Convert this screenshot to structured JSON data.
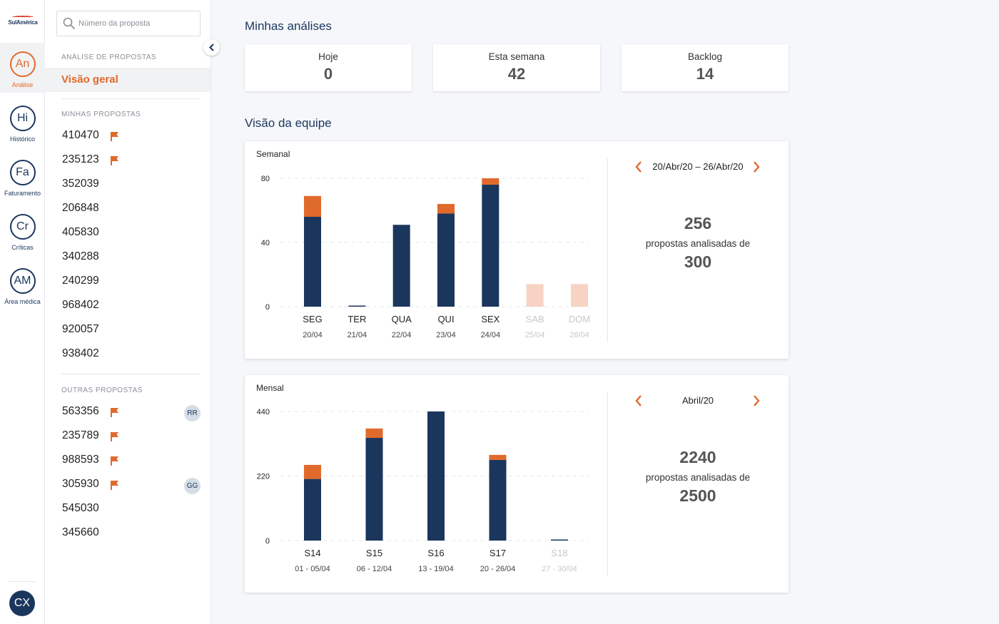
{
  "brand": {
    "logo_text": "SulAmérica"
  },
  "rail": {
    "items": [
      {
        "abbr": "An",
        "label": "Análise",
        "active": true
      },
      {
        "abbr": "Hi",
        "label": "Histórico"
      },
      {
        "abbr": "Fa",
        "label": "Faturamento"
      },
      {
        "abbr": "Cr",
        "label": "Críticas"
      },
      {
        "abbr": "AM",
        "label": "Área médica"
      }
    ],
    "user_initials": "CX"
  },
  "sidebar": {
    "search_placeholder": "Número da proposta",
    "section_analysis": "ANÁLISE DE PROPOSTAS",
    "active_nav": "Visão geral",
    "section_mine": "MINHAS PROPOSTAS",
    "mine": [
      {
        "number": "410470",
        "flag": true
      },
      {
        "number": "235123",
        "flag": true
      },
      {
        "number": "352039",
        "flag": false
      },
      {
        "number": "206848",
        "flag": false
      },
      {
        "number": "405830",
        "flag": false
      },
      {
        "number": "340288",
        "flag": false
      },
      {
        "number": "240299",
        "flag": false
      },
      {
        "number": "968402",
        "flag": false
      },
      {
        "number": "920057",
        "flag": false
      },
      {
        "number": "938402",
        "flag": false
      }
    ],
    "section_others": "OUTRAS PROPOSTAS",
    "others": [
      {
        "number": "563356",
        "flag": true,
        "badge": "RR"
      },
      {
        "number": "235789",
        "flag": true,
        "badge": ""
      },
      {
        "number": "988593",
        "flag": true,
        "badge": ""
      },
      {
        "number": "305930",
        "flag": true,
        "badge": "GG"
      },
      {
        "number": "545030",
        "flag": false,
        "badge": ""
      },
      {
        "number": "345660",
        "flag": false,
        "badge": ""
      }
    ]
  },
  "main": {
    "my_analyses_title": "Minhas análises",
    "stats": [
      {
        "label": "Hoje",
        "value": "0"
      },
      {
        "label": "Esta semana",
        "value": "42"
      },
      {
        "label": "Backlog",
        "value": "14"
      }
    ],
    "team_title": "Visão da equipe",
    "weekly": {
      "title": "Semanal",
      "period": "20/Abr/20 – 26/Abr/20",
      "analyzed": "256",
      "caption": "propostas analisadas de",
      "total": "300"
    },
    "monthly": {
      "title": "Mensal",
      "period": "Abril/20",
      "analyzed": "2240",
      "caption": "propostas analisadas de",
      "total": "2500"
    }
  },
  "colors": {
    "navy": "#1b365d",
    "orange": "#e06a2c",
    "orange_light": "#f6d3c2",
    "muted": "#c4c8ce"
  },
  "chart_data": [
    {
      "type": "bar",
      "stacked": true,
      "categories": [
        "SEG",
        "TER",
        "QUA",
        "QUI",
        "SEX",
        "SAB",
        "DOM"
      ],
      "sublabels": [
        "20/04",
        "21/04",
        "22/04",
        "23/04",
        "24/04",
        "25/04",
        "26/04"
      ],
      "inactive": [
        false,
        false,
        false,
        false,
        false,
        true,
        true
      ],
      "series": [
        {
          "values": [
            56,
            0.5,
            51,
            58,
            76,
            0,
            0
          ]
        },
        {
          "values": [
            13,
            0,
            0,
            6,
            4,
            14,
            14
          ]
        }
      ],
      "yticks": [
        0,
        40,
        80
      ],
      "ylim": [
        0,
        80
      ],
      "grid": true
    },
    {
      "type": "bar",
      "stacked": true,
      "categories": [
        "S14",
        "S15",
        "S16",
        "S17",
        "S18"
      ],
      "sublabels": [
        "01 - 05/04",
        "06 - 12/04",
        "13 - 19/04",
        "20 - 26/04",
        "27 - 30/04"
      ],
      "inactive": [
        false,
        false,
        false,
        false,
        true
      ],
      "series": [
        {
          "values": [
            210,
            350,
            440,
            275,
            2
          ]
        },
        {
          "values": [
            48,
            32,
            0,
            17,
            0
          ]
        }
      ],
      "yticks": [
        0,
        220,
        440
      ],
      "ylim": [
        0,
        440
      ],
      "grid": true
    }
  ]
}
